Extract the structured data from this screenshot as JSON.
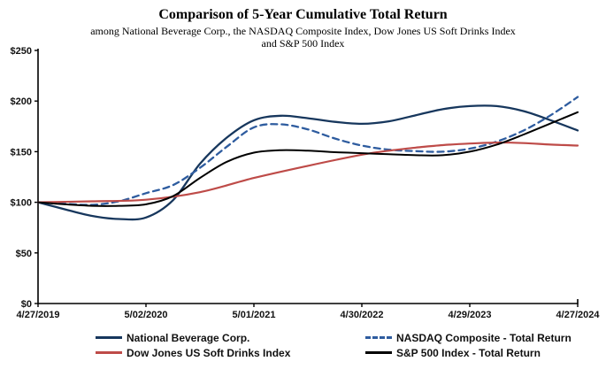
{
  "header": {
    "title": "Comparison of 5-Year Cumulative Total Return",
    "subtitle_line1": "among National Beverage Corp., the NASDAQ Composite Index, Dow Jones US Soft Drinks Index",
    "subtitle_line2": "and S&P 500 Index"
  },
  "chart_data": {
    "type": "line",
    "title": "Comparison of 5-Year Cumulative Total Return",
    "xlabel": "",
    "ylabel": "",
    "x_tick_labels": [
      "4/27/2019",
      "5/02/2020",
      "5/01/2021",
      "4/30/2022",
      "4/29/2023",
      "4/27/2024"
    ],
    "y_tick_labels": [
      "$0",
      "$50",
      "$100",
      "$150",
      "$200",
      "$250"
    ],
    "ylim": [
      0,
      250
    ],
    "xlim": [
      0,
      5
    ],
    "grid": false,
    "legend_position": "bottom",
    "series": [
      {
        "name": "National Beverage Corp.",
        "color": "#17375D",
        "dash": "solid",
        "width": 2.3,
        "values_at_ticks": [
          100,
          85,
          183,
          177,
          195,
          171
        ],
        "smooth_samples": [
          [
            0,
            100
          ],
          [
            0.25,
            93
          ],
          [
            0.5,
            86.5
          ],
          [
            0.75,
            83.5
          ],
          [
            1,
            85
          ],
          [
            1.25,
            102
          ],
          [
            1.5,
            138
          ],
          [
            1.75,
            164
          ],
          [
            2,
            181
          ],
          [
            2.25,
            185.5
          ],
          [
            2.5,
            183
          ],
          [
            2.75,
            179.5
          ],
          [
            3,
            177.5
          ],
          [
            3.25,
            180
          ],
          [
            3.5,
            186
          ],
          [
            3.75,
            192
          ],
          [
            4,
            195
          ],
          [
            4.25,
            195
          ],
          [
            4.5,
            190
          ],
          [
            4.75,
            181
          ],
          [
            5,
            171
          ]
        ]
      },
      {
        "name": "NASDAQ Composite - Total Return",
        "color": "#2E5C9F",
        "dash": "dashed",
        "width": 2.3,
        "values_at_ticks": [
          100,
          109,
          176,
          156,
          153,
          204
        ],
        "smooth_samples": [
          [
            0,
            100
          ],
          [
            0.25,
            98.5
          ],
          [
            0.5,
            97.5
          ],
          [
            0.75,
            101
          ],
          [
            1,
            109
          ],
          [
            1.25,
            117
          ],
          [
            1.5,
            134
          ],
          [
            1.75,
            155
          ],
          [
            2,
            174
          ],
          [
            2.25,
            177
          ],
          [
            2.5,
            172
          ],
          [
            2.75,
            163
          ],
          [
            3,
            156
          ],
          [
            3.25,
            152
          ],
          [
            3.5,
            150.5
          ],
          [
            3.75,
            150
          ],
          [
            4,
            153
          ],
          [
            4.25,
            160
          ],
          [
            4.5,
            171
          ],
          [
            4.75,
            186
          ],
          [
            5,
            204
          ]
        ]
      },
      {
        "name": "Dow Jones US Soft Drinks Index",
        "color": "#BE4B48",
        "dash": "solid",
        "width": 2.2,
        "values_at_ticks": [
          100,
          102,
          124,
          147,
          158,
          156
        ],
        "smooth_samples": [
          [
            0,
            100
          ],
          [
            0.5,
            101
          ],
          [
            1,
            102.5
          ],
          [
            1.5,
            110
          ],
          [
            2,
            124
          ],
          [
            2.5,
            136
          ],
          [
            3,
            147
          ],
          [
            3.25,
            151
          ],
          [
            3.5,
            154
          ],
          [
            3.75,
            156.5
          ],
          [
            4,
            158
          ],
          [
            4.25,
            159
          ],
          [
            4.5,
            158.5
          ],
          [
            4.75,
            157
          ],
          [
            5,
            156
          ]
        ]
      },
      {
        "name": "S&P 500 Index - Total Return",
        "color": "#000000",
        "dash": "solid",
        "width": 2.0,
        "values_at_ticks": [
          100,
          98,
          149,
          148,
          150,
          189
        ],
        "smooth_samples": [
          [
            0,
            100
          ],
          [
            0.25,
            98
          ],
          [
            0.5,
            96.5
          ],
          [
            0.75,
            96.5
          ],
          [
            1,
            98
          ],
          [
            1.25,
            106
          ],
          [
            1.5,
            124
          ],
          [
            1.75,
            140
          ],
          [
            2,
            149
          ],
          [
            2.25,
            151.5
          ],
          [
            2.5,
            151
          ],
          [
            2.75,
            149.5
          ],
          [
            3,
            148.5
          ],
          [
            3.25,
            147.5
          ],
          [
            3.5,
            146.5
          ],
          [
            3.75,
            146.5
          ],
          [
            4,
            150
          ],
          [
            4.25,
            157
          ],
          [
            4.5,
            167
          ],
          [
            4.75,
            178
          ],
          [
            5,
            189
          ]
        ]
      }
    ]
  },
  "legend": {
    "items": [
      {
        "label": "National Beverage Corp.",
        "series": 0
      },
      {
        "label": "Dow Jones US Soft Drinks Index",
        "series": 2
      },
      {
        "label": "NASDAQ Composite - Total Return",
        "series": 1
      },
      {
        "label": "S&P 500 Index - Total Return",
        "series": 3
      }
    ]
  }
}
